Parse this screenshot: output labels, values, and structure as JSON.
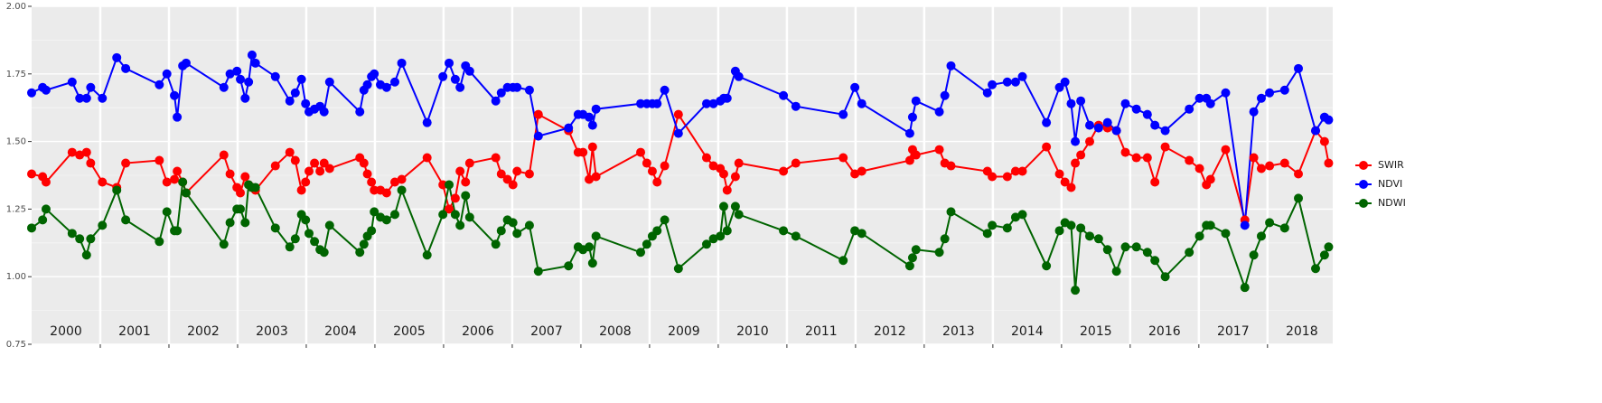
{
  "chart_data": {
    "type": "line",
    "x": [
      2000.0,
      2000.16,
      2000.21,
      2000.59,
      2000.7,
      2000.8,
      2000.86,
      2001.03,
      2001.24,
      2001.37,
      2001.86,
      2001.97,
      2002.08,
      2002.12,
      2002.2,
      2002.25,
      2002.8,
      2002.89,
      2002.99,
      2003.04,
      2003.11,
      2003.16,
      2003.21,
      2003.26,
      2003.55,
      2003.76,
      2003.84,
      2003.93,
      2003.99,
      2004.04,
      2004.12,
      2004.2,
      2004.26,
      2004.34,
      2004.78,
      2004.84,
      2004.89,
      2004.95,
      2004.99,
      2005.08,
      2005.17,
      2005.29,
      2005.39,
      2005.76,
      2005.99,
      2006.08,
      2006.17,
      2006.24,
      2006.32,
      2006.38,
      2006.76,
      2006.84,
      2006.93,
      2007.01,
      2007.07,
      2007.25,
      2007.38,
      2007.82,
      2007.96,
      2008.03,
      2008.12,
      2008.17,
      2008.22,
      2008.87,
      2008.96,
      2009.04,
      2009.11,
      2009.22,
      2009.42,
      2009.83,
      2009.93,
      2010.03,
      2010.08,
      2010.13,
      2010.25,
      2010.3,
      2010.95,
      2011.13,
      2011.82,
      2011.99,
      2012.09,
      2012.79,
      2012.83,
      2012.88,
      2013.22,
      2013.3,
      2013.39,
      2013.92,
      2013.99,
      2014.21,
      2014.33,
      2014.43,
      2014.78,
      2014.97,
      2015.05,
      2015.14,
      2015.2,
      2015.28,
      2015.41,
      2015.54,
      2015.67,
      2015.8,
      2015.93,
      2016.09,
      2016.25,
      2016.36,
      2016.51,
      2016.86,
      2017.01,
      2017.11,
      2017.17,
      2017.39,
      2017.67,
      2017.8,
      2017.91,
      2018.03,
      2018.25,
      2018.45,
      2018.7,
      2018.83,
      2018.89
    ],
    "series": [
      {
        "name": "SWIR",
        "color": "#ff0000",
        "values": [
          1.38,
          1.37,
          1.35,
          1.46,
          1.45,
          1.46,
          1.42,
          1.35,
          1.33,
          1.42,
          1.43,
          1.35,
          1.36,
          1.39,
          1.35,
          1.31,
          1.45,
          1.38,
          1.33,
          1.31,
          1.37,
          1.34,
          1.33,
          1.32,
          1.41,
          1.46,
          1.43,
          1.32,
          1.35,
          1.39,
          1.42,
          1.39,
          1.42,
          1.4,
          1.44,
          1.42,
          1.38,
          1.35,
          1.32,
          1.32,
          1.31,
          1.35,
          1.36,
          1.44,
          1.34,
          1.25,
          1.29,
          1.39,
          1.35,
          1.42,
          1.44,
          1.38,
          1.36,
          1.34,
          1.39,
          1.38,
          1.6,
          1.54,
          1.46,
          1.46,
          1.36,
          1.48,
          1.37,
          1.46,
          1.42,
          1.39,
          1.35,
          1.41,
          1.6,
          1.44,
          1.41,
          1.4,
          1.38,
          1.32,
          1.37,
          1.42,
          1.39,
          1.42,
          1.44,
          1.38,
          1.39,
          1.43,
          1.47,
          1.45,
          1.47,
          1.42,
          1.41,
          1.39,
          1.37,
          1.37,
          1.39,
          1.39,
          1.48,
          1.38,
          1.35,
          1.33,
          1.42,
          1.45,
          1.5,
          1.56,
          1.55,
          1.54,
          1.46,
          1.44,
          1.44,
          1.35,
          1.48,
          1.43,
          1.4,
          1.34,
          1.36,
          1.47,
          1.21,
          1.44,
          1.4,
          1.41,
          1.42,
          1.38,
          1.54,
          1.5,
          1.42
        ]
      },
      {
        "name": "NDVI",
        "color": "#0000ff",
        "values": [
          1.68,
          1.7,
          1.69,
          1.72,
          1.66,
          1.66,
          1.7,
          1.66,
          1.81,
          1.77,
          1.71,
          1.75,
          1.67,
          1.59,
          1.78,
          1.79,
          1.7,
          1.75,
          1.76,
          1.73,
          1.66,
          1.72,
          1.82,
          1.79,
          1.74,
          1.65,
          1.68,
          1.73,
          1.64,
          1.61,
          1.62,
          1.63,
          1.61,
          1.72,
          1.61,
          1.69,
          1.71,
          1.74,
          1.75,
          1.71,
          1.7,
          1.72,
          1.79,
          1.57,
          1.74,
          1.79,
          1.73,
          1.7,
          1.78,
          1.76,
          1.65,
          1.68,
          1.7,
          1.7,
          1.7,
          1.69,
          1.52,
          1.55,
          1.6,
          1.6,
          1.59,
          1.56,
          1.62,
          1.64,
          1.64,
          1.64,
          1.64,
          1.69,
          1.53,
          1.64,
          1.64,
          1.65,
          1.66,
          1.66,
          1.76,
          1.74,
          1.67,
          1.63,
          1.6,
          1.7,
          1.64,
          1.53,
          1.59,
          1.65,
          1.61,
          1.67,
          1.78,
          1.68,
          1.71,
          1.72,
          1.72,
          1.74,
          1.57,
          1.7,
          1.72,
          1.64,
          1.5,
          1.65,
          1.56,
          1.55,
          1.57,
          1.54,
          1.64,
          1.62,
          1.6,
          1.56,
          1.54,
          1.62,
          1.66,
          1.66,
          1.64,
          1.68,
          1.19,
          1.61,
          1.66,
          1.68,
          1.69,
          1.77,
          1.54,
          1.59,
          1.58
        ]
      },
      {
        "name": "NDWI",
        "color": "#006400",
        "values": [
          1.18,
          1.21,
          1.25,
          1.16,
          1.14,
          1.08,
          1.14,
          1.19,
          1.32,
          1.21,
          1.13,
          1.24,
          1.17,
          1.17,
          1.35,
          1.31,
          1.12,
          1.2,
          1.25,
          1.25,
          1.2,
          1.34,
          1.33,
          1.33,
          1.18,
          1.11,
          1.14,
          1.23,
          1.21,
          1.16,
          1.13,
          1.1,
          1.09,
          1.19,
          1.09,
          1.12,
          1.15,
          1.17,
          1.24,
          1.22,
          1.21,
          1.23,
          1.32,
          1.08,
          1.23,
          1.34,
          1.23,
          1.19,
          1.3,
          1.22,
          1.12,
          1.17,
          1.21,
          1.2,
          1.16,
          1.19,
          1.02,
          1.04,
          1.11,
          1.1,
          1.11,
          1.05,
          1.15,
          1.09,
          1.12,
          1.15,
          1.17,
          1.21,
          1.03,
          1.12,
          1.14,
          1.15,
          1.26,
          1.17,
          1.26,
          1.23,
          1.17,
          1.15,
          1.06,
          1.17,
          1.16,
          1.04,
          1.07,
          1.1,
          1.09,
          1.14,
          1.24,
          1.16,
          1.19,
          1.18,
          1.22,
          1.23,
          1.04,
          1.17,
          1.2,
          1.19,
          0.95,
          1.18,
          1.15,
          1.14,
          1.1,
          1.02,
          1.11,
          1.11,
          1.09,
          1.06,
          1.0,
          1.09,
          1.15,
          1.19,
          1.19,
          1.16,
          0.96,
          1.08,
          1.15,
          1.2,
          1.18,
          1.29,
          1.03,
          1.08,
          1.11
        ]
      }
    ],
    "xlim": [
      2000,
      2018.95
    ],
    "ylim": [
      0.75,
      2.0
    ],
    "yticks": [
      {
        "value": 0.75,
        "label": "0.75"
      },
      {
        "value": 1.0,
        "label": "1.00"
      },
      {
        "value": 1.25,
        "label": "1.25"
      },
      {
        "value": 1.5,
        "label": "1.50"
      },
      {
        "value": 1.75,
        "label": "1.75"
      },
      {
        "value": 2.0,
        "label": "2.00"
      }
    ],
    "year_boundaries": [
      2001,
      2002,
      2003,
      2004,
      2005,
      2006,
      2007,
      2008,
      2009,
      2010,
      2011,
      2012,
      2013,
      2014,
      2015,
      2016,
      2017,
      2018
    ],
    "year_labels": [
      {
        "value": 2000.5,
        "label": "2000"
      },
      {
        "value": 2001.5,
        "label": "2001"
      },
      {
        "value": 2002.5,
        "label": "2002"
      },
      {
        "value": 2003.5,
        "label": "2003"
      },
      {
        "value": 2004.5,
        "label": "2004"
      },
      {
        "value": 2005.5,
        "label": "2005"
      },
      {
        "value": 2006.5,
        "label": "2006"
      },
      {
        "value": 2007.5,
        "label": "2007"
      },
      {
        "value": 2008.5,
        "label": "2008"
      },
      {
        "value": 2009.5,
        "label": "2009"
      },
      {
        "value": 2010.5,
        "label": "2010"
      },
      {
        "value": 2011.5,
        "label": "2011"
      },
      {
        "value": 2012.5,
        "label": "2012"
      },
      {
        "value": 2013.5,
        "label": "2013"
      },
      {
        "value": 2014.5,
        "label": "2014"
      },
      {
        "value": 2015.5,
        "label": "2015"
      },
      {
        "value": 2016.5,
        "label": "2016"
      },
      {
        "value": 2017.5,
        "label": "2017"
      },
      {
        "value": 2018.5,
        "label": "2018"
      }
    ],
    "grid": true,
    "legend": "right"
  }
}
